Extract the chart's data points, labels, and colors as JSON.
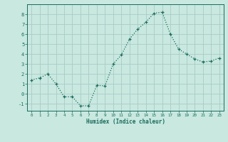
{
  "x": [
    0,
    1,
    2,
    3,
    4,
    5,
    6,
    7,
    8,
    9,
    10,
    11,
    12,
    13,
    14,
    15,
    16,
    17,
    18,
    19,
    20,
    21,
    22,
    23
  ],
  "y": [
    1.4,
    1.6,
    2.0,
    1.0,
    -0.3,
    -0.3,
    -1.2,
    -1.2,
    0.85,
    0.8,
    3.0,
    3.9,
    5.5,
    6.5,
    7.2,
    8.1,
    8.2,
    6.0,
    4.5,
    4.0,
    3.5,
    3.2,
    3.3,
    3.6
  ],
  "xlabel": "Humidex (Indice chaleur)",
  "ylim": [
    -1.7,
    9.0
  ],
  "xlim": [
    -0.5,
    23.5
  ],
  "yticks": [
    -1,
    0,
    1,
    2,
    3,
    4,
    5,
    6,
    7,
    8
  ],
  "xticks": [
    0,
    1,
    2,
    3,
    4,
    5,
    6,
    7,
    8,
    9,
    10,
    11,
    12,
    13,
    14,
    15,
    16,
    17,
    18,
    19,
    20,
    21,
    22,
    23
  ],
  "line_color": "#1a6b5a",
  "marker": "+",
  "bg_color": "#c8e8e0",
  "grid_color": "#aaccc4",
  "axis_color": "#1a6b5a",
  "font_color": "#1a6b5a"
}
